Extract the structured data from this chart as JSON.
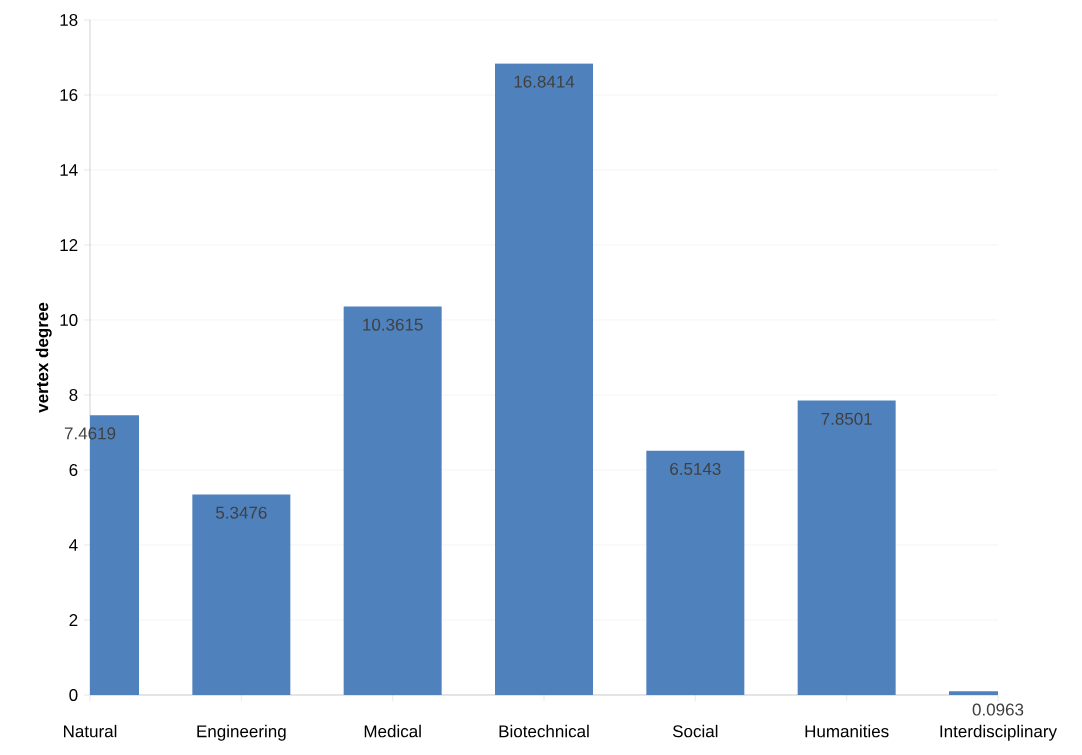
{
  "chart_data": {
    "type": "bar",
    "ylabel": "vertex degree",
    "categories": [
      "Natural",
      "Engineering",
      "Medical",
      "Biotechnical",
      "Social",
      "Humanities",
      "Interdisciplinary"
    ],
    "values": [
      7.4619,
      5.3476,
      10.3615,
      16.8414,
      6.5143,
      7.8501,
      0.0963
    ],
    "color": "#4f81bd",
    "ylim": [
      0,
      18
    ],
    "yticks": [
      0,
      2,
      4,
      6,
      8,
      10,
      12,
      14,
      16,
      18
    ],
    "grid": "y",
    "data_labels": true
  }
}
